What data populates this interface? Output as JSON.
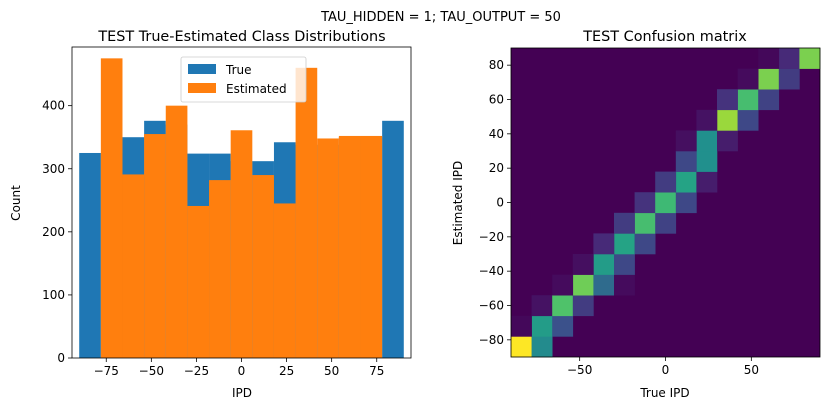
{
  "suptitle": "TAU_HIDDEN = 1; TAU_OUTPUT = 50",
  "chart_data": [
    {
      "type": "bar",
      "title": "TEST True-Estimated Class Distributions",
      "xlabel": "IPD",
      "ylabel": "Count",
      "xlim": [
        -94,
        94
      ],
      "ylim": [
        0,
        493
      ],
      "xticks": [
        -75,
        -50,
        -25,
        0,
        25,
        50,
        75
      ],
      "xtick_labels": [
        "−75",
        "−50",
        "−25",
        "0",
        "25",
        "50",
        "75"
      ],
      "yticks": [
        0,
        100,
        200,
        300,
        400
      ],
      "ytick_labels": [
        "0",
        "100",
        "200",
        "300",
        "400"
      ],
      "legend_position": "top-center",
      "bin_edges": [
        -90,
        -78,
        -66,
        -54,
        -42,
        -30,
        -18,
        -6,
        6,
        18,
        30,
        42,
        54,
        66,
        78,
        90
      ],
      "series": [
        {
          "name": "True",
          "color": "#1f77b4",
          "values": [
            325,
            325,
            350,
            376,
            370,
            324,
            324,
            312,
            312,
            342,
            338,
            338,
            350,
            350,
            376
          ]
        },
        {
          "name": "Estimated",
          "color": "#ff7f0e",
          "values": [
            0,
            475,
            291,
            355,
            400,
            241,
            282,
            361,
            290,
            245,
            460,
            348,
            352,
            352,
            0
          ]
        }
      ]
    },
    {
      "type": "heatmap",
      "title": "TEST Confusion matrix",
      "xlabel": "True IPD",
      "ylabel": "Estimated IPD",
      "xlim": [
        -90,
        90
      ],
      "ylim": [
        -90,
        90
      ],
      "xticks": [
        -50,
        0,
        50
      ],
      "xtick_labels": [
        "−50",
        "0",
        "50"
      ],
      "yticks": [
        -80,
        -60,
        -40,
        -20,
        0,
        20,
        40,
        60,
        80
      ],
      "ytick_labels": [
        "−80",
        "−60",
        "−40",
        "−20",
        "0",
        "20",
        "40",
        "60",
        "80"
      ],
      "bins": 15,
      "cells": [
        {
          "col": 0,
          "row": 0,
          "v": 1.0
        },
        {
          "col": 1,
          "row": 0,
          "v": 0.48
        },
        {
          "col": 1,
          "row": 1,
          "v": 0.55
        },
        {
          "col": 2,
          "row": 1,
          "v": 0.25
        },
        {
          "col": 0,
          "row": 1,
          "v": 0.02
        },
        {
          "col": 1,
          "row": 2,
          "v": 0.05
        },
        {
          "col": 2,
          "row": 2,
          "v": 0.72
        },
        {
          "col": 3,
          "row": 2,
          "v": 0.18
        },
        {
          "col": 3,
          "row": 3,
          "v": 0.78
        },
        {
          "col": 2,
          "row": 3,
          "v": 0.03
        },
        {
          "col": 4,
          "row": 3,
          "v": 0.35
        },
        {
          "col": 5,
          "row": 3,
          "v": 0.03
        },
        {
          "col": 4,
          "row": 4,
          "v": 0.55
        },
        {
          "col": 5,
          "row": 4,
          "v": 0.22
        },
        {
          "col": 3,
          "row": 4,
          "v": 0.04
        },
        {
          "col": 5,
          "row": 5,
          "v": 0.58
        },
        {
          "col": 6,
          "row": 5,
          "v": 0.22
        },
        {
          "col": 4,
          "row": 5,
          "v": 0.12
        },
        {
          "col": 6,
          "row": 6,
          "v": 0.7
        },
        {
          "col": 5,
          "row": 6,
          "v": 0.18
        },
        {
          "col": 7,
          "row": 6,
          "v": 0.2
        },
        {
          "col": 6,
          "row": 7,
          "v": 0.15
        },
        {
          "col": 7,
          "row": 7,
          "v": 0.68
        },
        {
          "col": 8,
          "row": 7,
          "v": 0.22
        },
        {
          "col": 8,
          "row": 8,
          "v": 0.58
        },
        {
          "col": 7,
          "row": 8,
          "v": 0.18
        },
        {
          "col": 9,
          "row": 8,
          "v": 0.08
        },
        {
          "col": 9,
          "row": 9,
          "v": 0.5
        },
        {
          "col": 8,
          "row": 9,
          "v": 0.22
        },
        {
          "col": 9,
          "row": 10,
          "v": 0.5
        },
        {
          "col": 10,
          "row": 10,
          "v": 0.08
        },
        {
          "col": 8,
          "row": 10,
          "v": 0.04
        },
        {
          "col": 10,
          "row": 11,
          "v": 0.85
        },
        {
          "col": 9,
          "row": 11,
          "v": 0.05
        },
        {
          "col": 11,
          "row": 11,
          "v": 0.22
        },
        {
          "col": 11,
          "row": 12,
          "v": 0.7
        },
        {
          "col": 10,
          "row": 12,
          "v": 0.15
        },
        {
          "col": 12,
          "row": 12,
          "v": 0.2
        },
        {
          "col": 12,
          "row": 13,
          "v": 0.8
        },
        {
          "col": 13,
          "row": 13,
          "v": 0.18
        },
        {
          "col": 11,
          "row": 13,
          "v": 0.03
        },
        {
          "col": 13,
          "row": 14,
          "v": 0.12
        },
        {
          "col": 14,
          "row": 14,
          "v": 0.8
        },
        {
          "col": 12,
          "row": 14,
          "v": 0.02
        }
      ]
    }
  ]
}
